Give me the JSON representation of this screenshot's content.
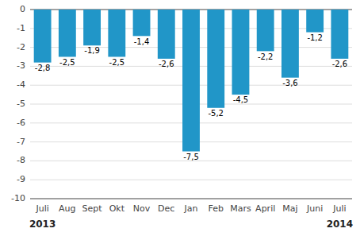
{
  "chart_data": {
    "type": "bar",
    "categories": [
      "Juli",
      "Aug",
      "Sept",
      "Okt",
      "Nov",
      "Dec",
      "Jan",
      "Feb",
      "Mars",
      "April",
      "Maj",
      "Juni",
      "Juli"
    ],
    "values": [
      -2.8,
      -2.5,
      -1.9,
      -2.5,
      -1.4,
      -2.6,
      -7.5,
      -5.2,
      -4.5,
      -2.2,
      -3.6,
      -1.2,
      -2.6
    ],
    "value_labels": [
      "-2,8",
      "-2,5",
      "-1,9",
      "-2,5",
      "-1,4",
      "-2,6",
      "-7,5",
      "-5,2",
      "-4,5",
      "-2,2",
      "-3,6",
      "-1,2",
      "-2,6"
    ],
    "data_labels": true,
    "color": "#2196C8",
    "ylim": [
      -10,
      0
    ],
    "yticks": [
      0,
      -1,
      -2,
      -3,
      -4,
      -5,
      -6,
      -7,
      -8,
      -9,
      -10
    ],
    "grid": true,
    "annotations": [
      "2013",
      "2014"
    ]
  }
}
